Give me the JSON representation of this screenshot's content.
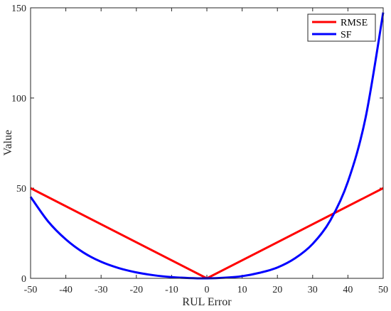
{
  "chart_data": {
    "type": "line",
    "title": "",
    "xlabel": "RUL Error",
    "ylabel": "Value",
    "xlim": [
      -50,
      50
    ],
    "ylim": [
      0,
      150
    ],
    "xticks": [
      -50,
      -40,
      -30,
      -20,
      -10,
      0,
      10,
      20,
      30,
      40,
      50
    ],
    "yticks": [
      0,
      50,
      100,
      150
    ],
    "grid": false,
    "legend_position": "top-right",
    "series": [
      {
        "name": "RMSE",
        "color": "#ff0000",
        "x": [
          -50,
          0,
          50
        ],
        "y": [
          50,
          0,
          50
        ]
      },
      {
        "name": "SF",
        "color": "#0000ff",
        "x": [
          -50,
          -45,
          -40,
          -35,
          -30,
          -25,
          -20,
          -15,
          -10,
          -5,
          0,
          5,
          10,
          15,
          20,
          25,
          30,
          35,
          40,
          45,
          50
        ],
        "y": [
          45.2,
          31.5,
          21.6,
          14.3,
          9.2,
          5.7,
          3.3,
          1.7,
          0.69,
          0.16,
          0,
          0.34,
          1.2,
          3.1,
          6.0,
          11.1,
          19.1,
          32.1,
          53.6,
          89.0,
          147.4
        ]
      }
    ]
  }
}
